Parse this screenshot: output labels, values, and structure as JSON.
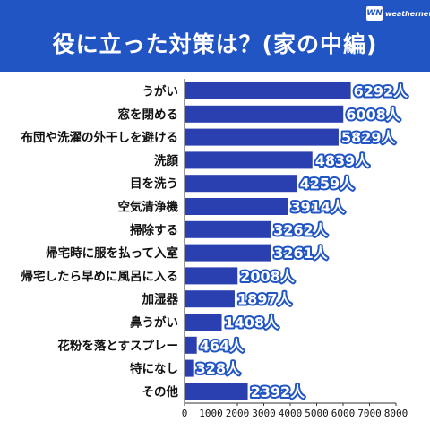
{
  "header": {
    "title": "役に立った対策は？(家の中編)",
    "logo_mark": "WN",
    "logo_text": "weathernews"
  },
  "colors": {
    "bar": "#2a3fb0",
    "header_bg": "#2255c4",
    "label_outline": "#2255c4"
  },
  "chart_data": {
    "type": "bar",
    "orientation": "horizontal",
    "title": "役に立った対策は？(家の中編)",
    "categories": [
      "うがい",
      "窓を閉める",
      "布団や洗濯の外干しを避ける",
      "洗顔",
      "目を洗う",
      "空気清浄機",
      "掃除する",
      "帰宅時に服を払って入室",
      "帰宅したら早めに風呂に入る",
      "加湿器",
      "鼻うがい",
      "花粉を落とすスプレー",
      "特になし",
      "その他"
    ],
    "values": [
      6292,
      6008,
      5829,
      4839,
      4259,
      3914,
      3262,
      3261,
      2008,
      1897,
      1408,
      464,
      328,
      2392
    ],
    "value_labels": [
      "6292人",
      "6008人",
      "5829人",
      "4839人",
      "4259人",
      "3914人",
      "3262人",
      "3261人",
      "2008人",
      "1897人",
      "1408人",
      "464人",
      "328人",
      "2392人"
    ],
    "unit": "人",
    "xlim": [
      0,
      8000
    ],
    "xticks": [
      0,
      1000,
      2000,
      3000,
      4000,
      5000,
      6000,
      7000,
      8000
    ],
    "xtick_labels": [
      "0",
      "1000",
      "2000",
      "3000",
      "4000",
      "5000",
      "6000",
      "7000",
      "8000"
    ],
    "grid": false,
    "legend": "none"
  }
}
